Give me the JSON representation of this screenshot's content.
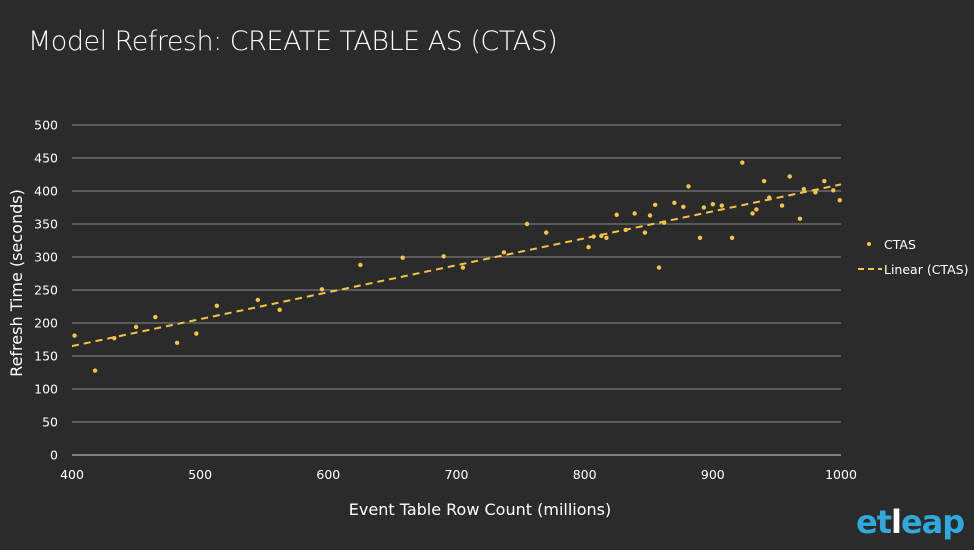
{
  "chart_data": {
    "type": "scatter",
    "title": "Model Refresh: CREATE TABLE AS (CTAS)",
    "xlabel": "Event Table Row Count (millions)",
    "ylabel": "Refresh Time (seconds)",
    "xlim": [
      400,
      1000
    ],
    "ylim": [
      0,
      500
    ],
    "xticks": [
      400,
      500,
      600,
      700,
      800,
      900,
      1000
    ],
    "yticks": [
      0,
      50,
      100,
      150,
      200,
      250,
      300,
      350,
      400,
      450,
      500
    ],
    "grid": "horizontal",
    "legend_position": "right",
    "series": [
      {
        "name": "CTAS",
        "color": "#f6c445",
        "points": [
          [
            402,
            181
          ],
          [
            418,
            128
          ],
          [
            433,
            177
          ],
          [
            450,
            194
          ],
          [
            465,
            209
          ],
          [
            482,
            170
          ],
          [
            497,
            184
          ],
          [
            513,
            226
          ],
          [
            545,
            235
          ],
          [
            562,
            220
          ],
          [
            595,
            251
          ],
          [
            625,
            288
          ],
          [
            658,
            299
          ],
          [
            690,
            301
          ],
          [
            705,
            284
          ],
          [
            737,
            307
          ],
          [
            755,
            350
          ],
          [
            770,
            337
          ],
          [
            803,
            315
          ],
          [
            807,
            331
          ],
          [
            813,
            332
          ],
          [
            817,
            329
          ],
          [
            825,
            364
          ],
          [
            832,
            341
          ],
          [
            839,
            366
          ],
          [
            847,
            337
          ],
          [
            851,
            363
          ],
          [
            855,
            379
          ],
          [
            858,
            284
          ],
          [
            862,
            352
          ],
          [
            870,
            382
          ],
          [
            877,
            376
          ],
          [
            881,
            407
          ],
          [
            890,
            329
          ],
          [
            893,
            375
          ],
          [
            900,
            380
          ],
          [
            907,
            378
          ],
          [
            915,
            329
          ],
          [
            923,
            443
          ],
          [
            931,
            366
          ],
          [
            934,
            372
          ],
          [
            940,
            415
          ],
          [
            944,
            390
          ],
          [
            954,
            378
          ],
          [
            960,
            422
          ],
          [
            968,
            358
          ],
          [
            971,
            403
          ],
          [
            980,
            398
          ],
          [
            987,
            415
          ],
          [
            994,
            401
          ],
          [
            999,
            386
          ]
        ]
      },
      {
        "name": "Linear (CTAS)",
        "color": "#f6c445",
        "style": "dashed",
        "line": [
          [
            400,
            165
          ],
          [
            1000,
            410
          ]
        ]
      }
    ]
  },
  "logo": {
    "prefix": "et",
    "middle": "l",
    "suffix": "eap"
  }
}
